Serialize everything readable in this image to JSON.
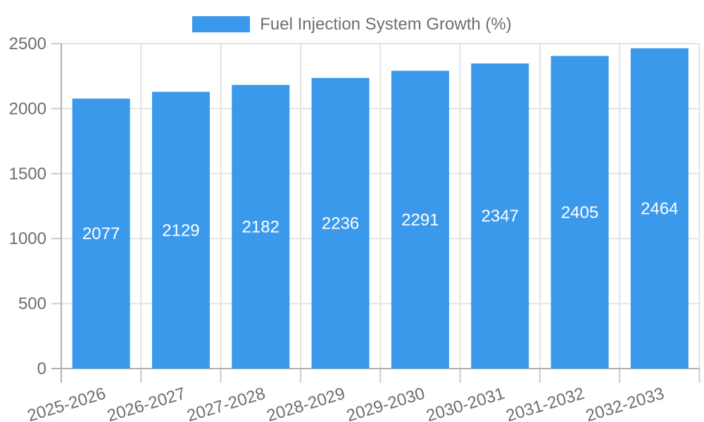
{
  "legend": {
    "label": "Fuel Injection System Growth (%)"
  },
  "chart_data": {
    "type": "bar",
    "title": "Fuel Injection System Growth (%)",
    "categories": [
      "2025-2026",
      "2026-2027",
      "2027-2028",
      "2028-2029",
      "2029-2030",
      "2030-2031",
      "2031-2032",
      "2032-2033"
    ],
    "values": [
      2077,
      2129,
      2182,
      2236,
      2291,
      2347,
      2405,
      2464
    ],
    "series_name": "Fuel Injection System Growth (%)",
    "xlabel": "",
    "ylabel": "",
    "ylim": [
      0,
      2500
    ],
    "yticks": [
      0,
      500,
      1000,
      1500,
      2000,
      2500
    ],
    "grid": true,
    "legend_position": "top",
    "value_label_position": "inside-middle",
    "colors": {
      "bar": "#3B99EC",
      "value_label": "#ffffff",
      "axis_text": "#6e6e6e",
      "gridline": "#e3e3e3",
      "tick": "#cccccc",
      "axis_line": "#b0b0b0",
      "background": "#ffffff"
    }
  }
}
